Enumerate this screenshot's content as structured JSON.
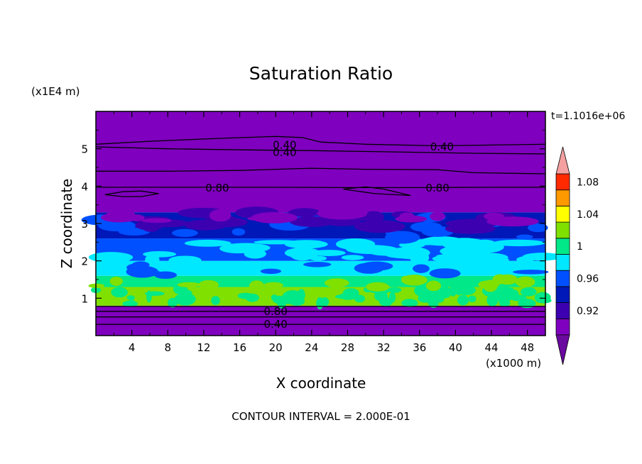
{
  "chart_data": {
    "type": "heatmap",
    "title": "Saturation Ratio",
    "xlabel": "X coordinate",
    "ylabel": "Z coordinate",
    "x_unit": "(x1000 m)",
    "y_unit": "(x1E4 m)",
    "time_label": "t=1.1016e+06",
    "footer": "CONTOUR INTERVAL = 2.000E-01",
    "xlim": [
      0,
      50
    ],
    "ylim": [
      0,
      6
    ],
    "x_ticks": [
      "4",
      "8",
      "12",
      "16",
      "20",
      "24",
      "28",
      "32",
      "36",
      "40",
      "44",
      "48"
    ],
    "y_ticks": [
      "1",
      "2",
      "3",
      "4",
      "5"
    ],
    "colorbar": {
      "tick_labels": [
        "1.08",
        "1.04",
        "1",
        "0.96",
        "0.92"
      ],
      "levels": [
        0.9,
        0.92,
        0.94,
        0.96,
        0.98,
        1.0,
        1.02,
        1.04,
        1.06,
        1.08,
        1.1
      ],
      "colors": [
        "#7f00bf",
        "#3d00b0",
        "#0018b8",
        "#0050ff",
        "#00e8ff",
        "#00e887",
        "#80e000",
        "#ffff00",
        "#ff9900",
        "#ff2a00"
      ],
      "under_color": "#6a0a9e",
      "over_color": "#f4a0a0"
    },
    "filled_bands": [
      {
        "z_range": [
          0.0,
          0.8
        ],
        "level": "0.90",
        "color": "#7f00bf"
      },
      {
        "z_range": [
          0.8,
          1.3
        ],
        "level": "0.99-1.01",
        "color": "#80e000"
      },
      {
        "z_range": [
          1.3,
          1.6
        ],
        "level": "0.98",
        "color": "#00e887"
      },
      {
        "z_range": [
          1.6,
          2.0
        ],
        "level": "0.97",
        "color": "#00e8ff"
      },
      {
        "z_range": [
          2.0,
          2.6
        ],
        "level": "0.95",
        "color": "#0050ff"
      },
      {
        "z_range": [
          2.6,
          3.3
        ],
        "level": "0.92",
        "color": "#0018b8"
      },
      {
        "z_range": [
          3.3,
          6.0
        ],
        "level": "0.90",
        "color": "#7f00bf"
      }
    ],
    "contour_labels": [
      {
        "text": "0.40",
        "x": 21,
        "z": 5.1
      },
      {
        "text": "0.40",
        "x": 21,
        "z": 4.9
      },
      {
        "text": "0.40",
        "x": 38.5,
        "z": 5.05
      },
      {
        "text": "0.80",
        "x": 13.5,
        "z": 3.95
      },
      {
        "text": "0.80",
        "x": 38,
        "z": 3.95
      },
      {
        "text": "0.80",
        "x": 20,
        "z": 0.65
      },
      {
        "text": "0.40",
        "x": 20,
        "z": 0.3
      }
    ]
  }
}
